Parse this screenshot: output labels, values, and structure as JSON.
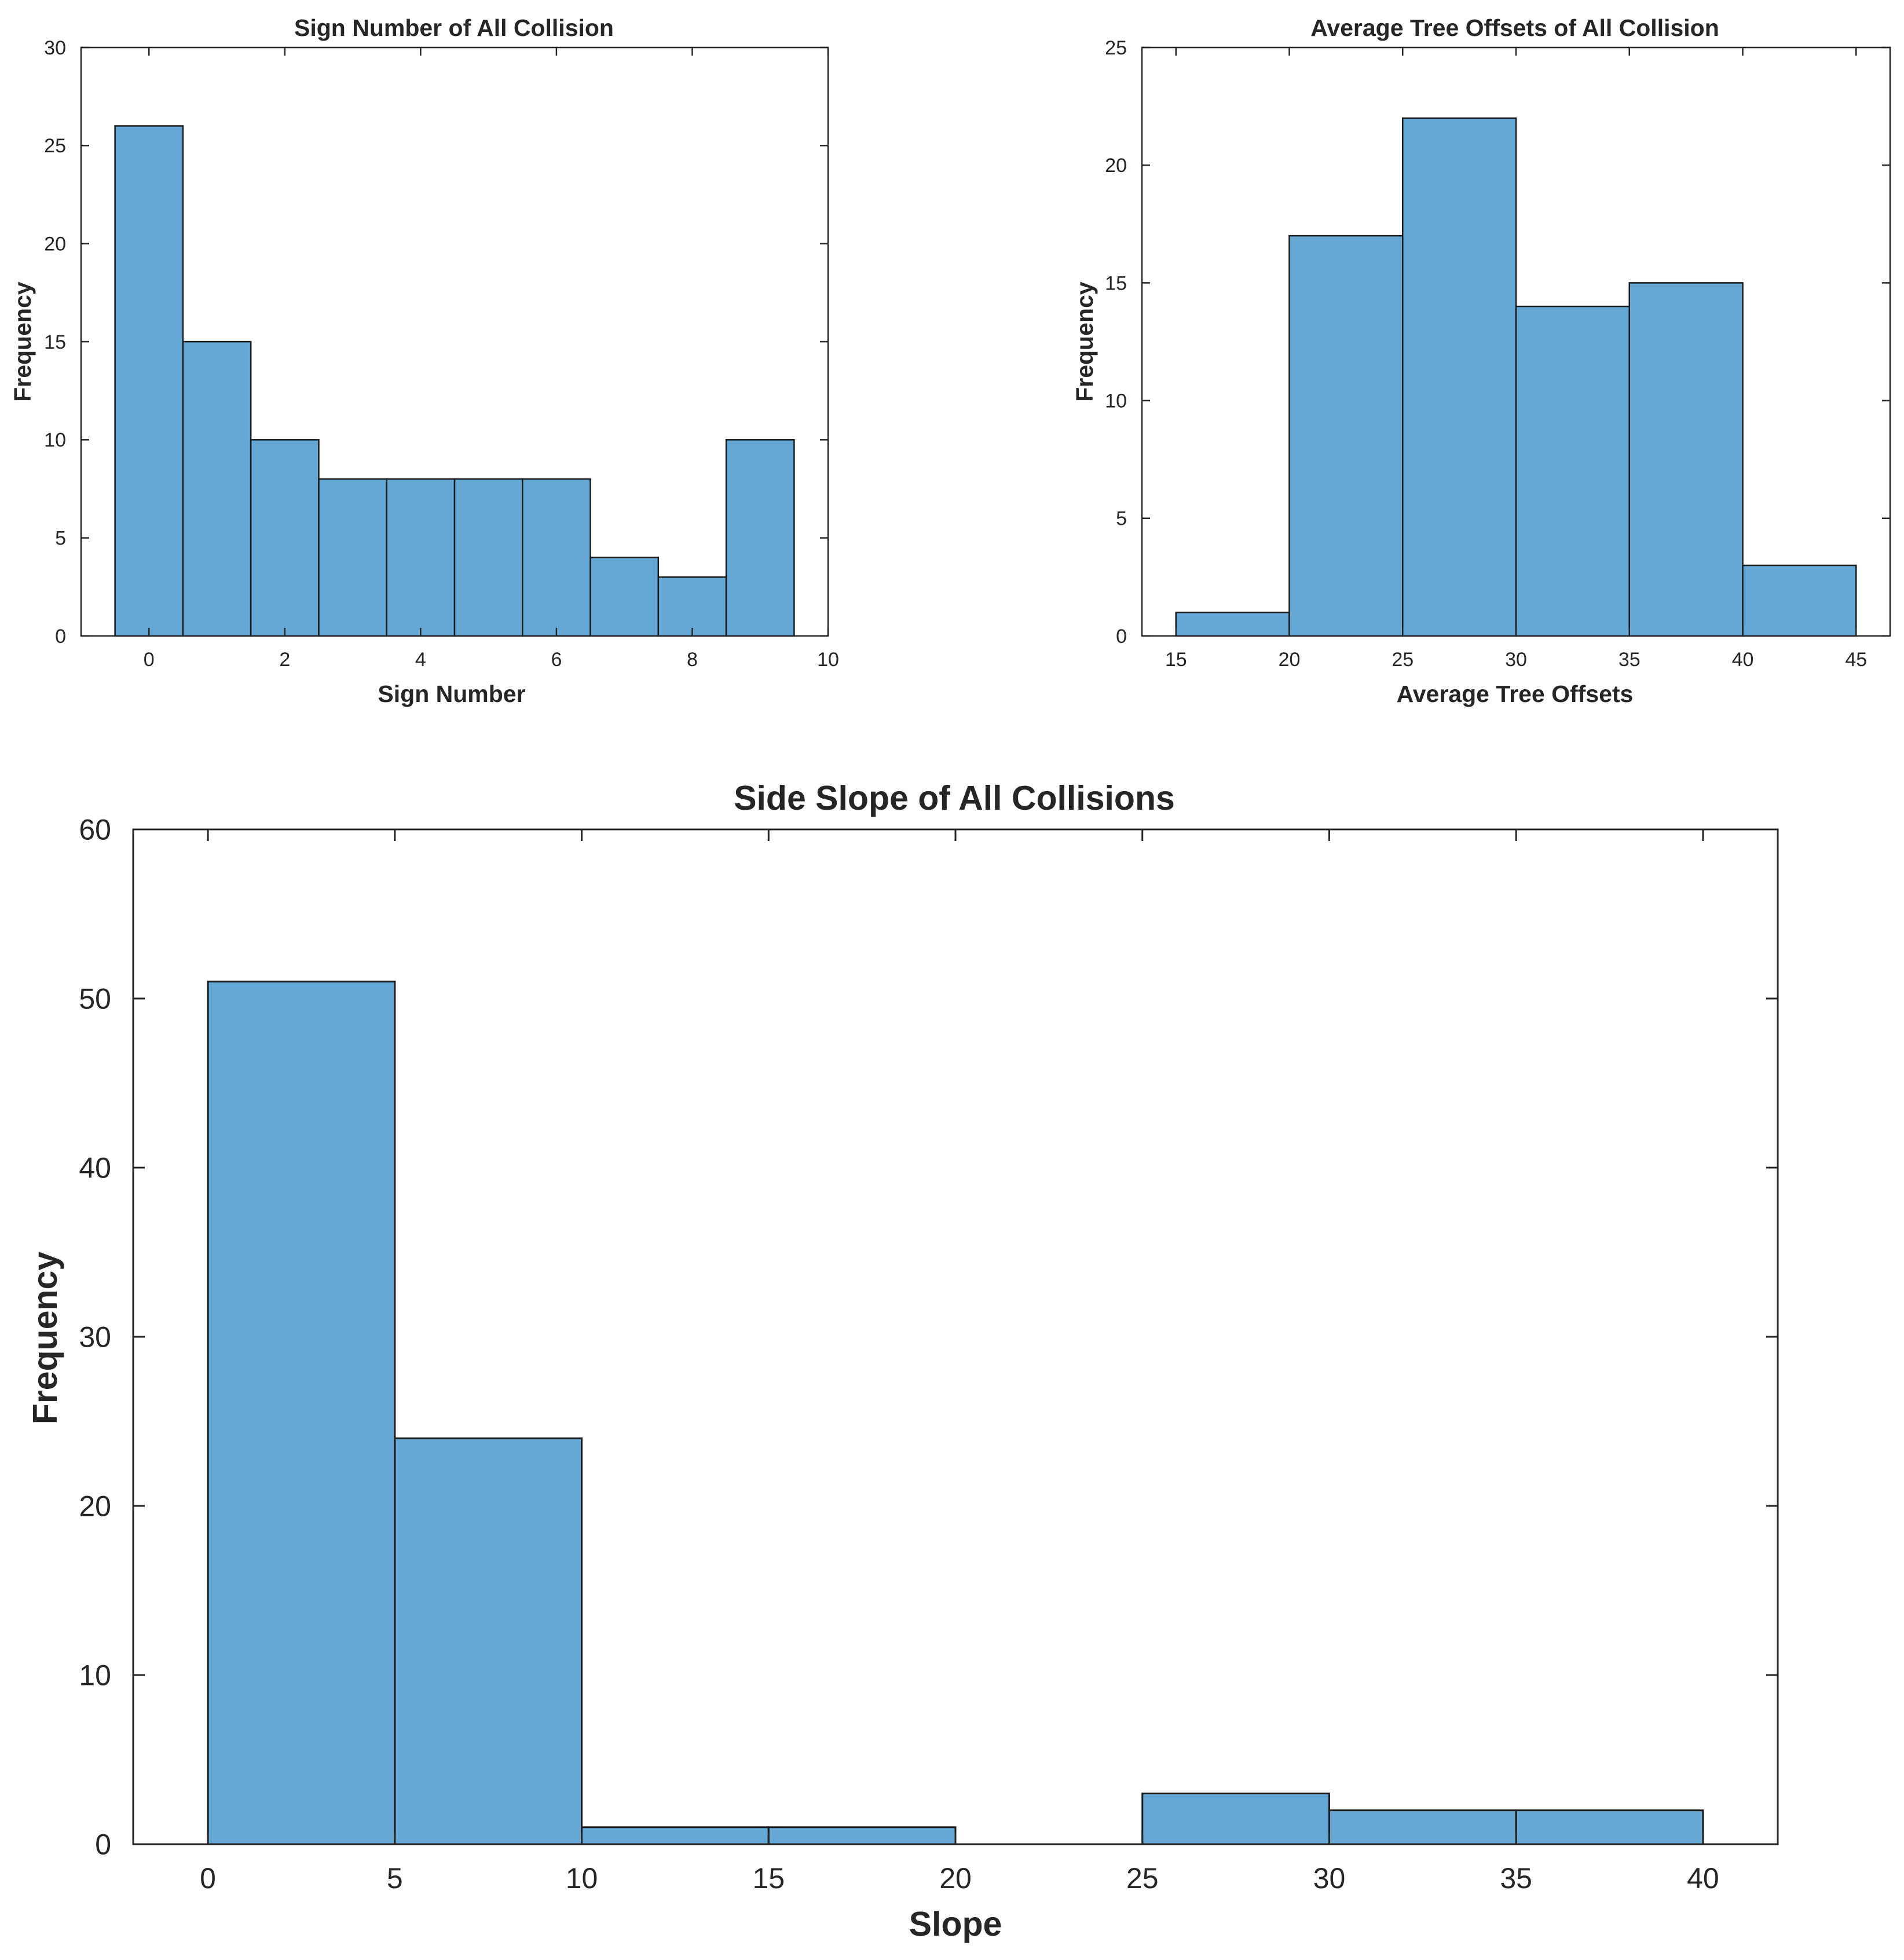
{
  "colors": {
    "bar": "#65a8d6",
    "edge": "#1a1a1a",
    "axis": "#262626"
  },
  "chart_data": [
    {
      "id": "sign",
      "type": "bar",
      "title": "Sign Number of All Collision",
      "xlabel": "Sign Number",
      "ylabel": "Frequency",
      "xlim": [
        -1,
        10
      ],
      "ylim": [
        0,
        30
      ],
      "xticks": [
        0,
        2,
        4,
        6,
        8,
        10
      ],
      "yticks": [
        0,
        5,
        10,
        15,
        20,
        25,
        30
      ],
      "bins": [
        {
          "x0": -0.5,
          "x1": 0.5,
          "value": 26
        },
        {
          "x0": 0.5,
          "x1": 1.5,
          "value": 15
        },
        {
          "x0": 1.5,
          "x1": 2.5,
          "value": 10
        },
        {
          "x0": 2.5,
          "x1": 3.5,
          "value": 8
        },
        {
          "x0": 3.5,
          "x1": 4.5,
          "value": 8
        },
        {
          "x0": 4.5,
          "x1": 5.5,
          "value": 8
        },
        {
          "x0": 5.5,
          "x1": 6.5,
          "value": 8
        },
        {
          "x0": 6.5,
          "x1": 7.5,
          "value": 4
        },
        {
          "x0": 7.5,
          "x1": 8.5,
          "value": 3
        },
        {
          "x0": 8.5,
          "x1": 9.5,
          "value": 10
        }
      ]
    },
    {
      "id": "tree",
      "type": "bar",
      "title": "Average Tree Offsets of All Collision",
      "xlabel": "Average Tree Offsets",
      "ylabel": "Frequency",
      "xlim": [
        13.5,
        46.5
      ],
      "ylim": [
        0,
        25
      ],
      "xticks": [
        15,
        20,
        25,
        30,
        35,
        40,
        45
      ],
      "yticks": [
        0,
        5,
        10,
        15,
        20,
        25
      ],
      "bins": [
        {
          "x0": 15,
          "x1": 20,
          "value": 1
        },
        {
          "x0": 20,
          "x1": 25,
          "value": 17
        },
        {
          "x0": 25,
          "x1": 30,
          "value": 22
        },
        {
          "x0": 30,
          "x1": 35,
          "value": 14
        },
        {
          "x0": 35,
          "x1": 40,
          "value": 15
        },
        {
          "x0": 40,
          "x1": 45,
          "value": 3
        }
      ]
    },
    {
      "id": "slope",
      "type": "bar",
      "title": "Side Slope of All Collisions",
      "xlabel": "Slope",
      "ylabel": "Frequency",
      "xlim": [
        -2,
        42
      ],
      "ylim": [
        0,
        60
      ],
      "xticks": [
        0,
        5,
        10,
        15,
        20,
        25,
        30,
        35,
        40
      ],
      "yticks": [
        0,
        10,
        20,
        30,
        40,
        50,
        60
      ],
      "bins": [
        {
          "x0": 0,
          "x1": 5,
          "value": 51
        },
        {
          "x0": 5,
          "x1": 10,
          "value": 24
        },
        {
          "x0": 10,
          "x1": 15,
          "value": 1
        },
        {
          "x0": 15,
          "x1": 20,
          "value": 1
        },
        {
          "x0": 20,
          "x1": 25,
          "value": 0
        },
        {
          "x0": 25,
          "x1": 30,
          "value": 3
        },
        {
          "x0": 30,
          "x1": 35,
          "value": 2
        },
        {
          "x0": 35,
          "x1": 40,
          "value": 2
        }
      ]
    }
  ]
}
